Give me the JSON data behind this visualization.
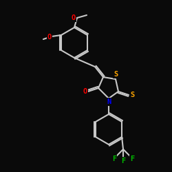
{
  "bg": "#0a0a0a",
  "bond_color": "#c8c8c8",
  "colors": {
    "N": "#0000ff",
    "O": "#ff0000",
    "S": "#ffa500",
    "F": "#00bb00",
    "C": "#c8c8c8"
  },
  "lw": 1.5,
  "fs": 7.5
}
